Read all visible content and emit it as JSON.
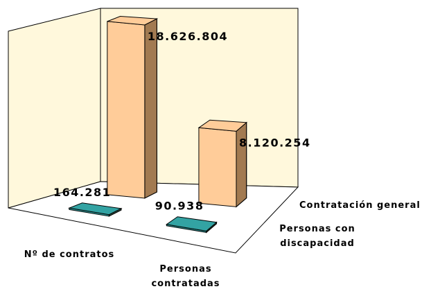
{
  "chart_data": {
    "type": "bar3d",
    "categories": [
      "Nº de contratos",
      "Personas contratadas"
    ],
    "series": [
      {
        "name": "Contratación general",
        "color": "#ffcc99",
        "values": [
          18626804,
          8120254
        ],
        "value_labels": [
          "18.626.804",
          "8.120.254"
        ]
      },
      {
        "name": "Personas con discapacidad",
        "color": "#33a3a3",
        "values": [
          164281,
          90938
        ],
        "value_labels": [
          "164.281",
          "90.938"
        ]
      }
    ],
    "wall_color": "#fff8dc"
  }
}
